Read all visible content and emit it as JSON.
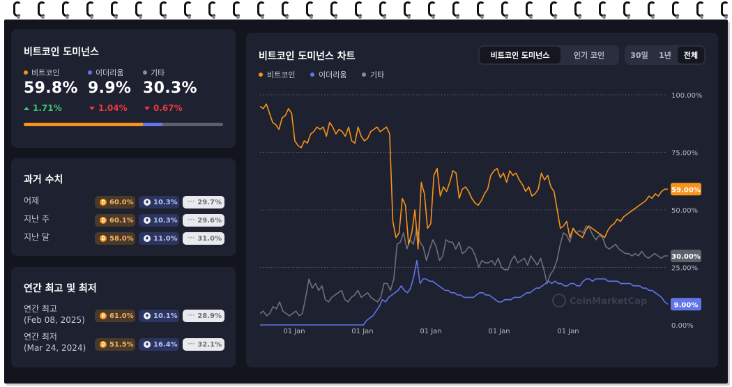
{
  "dominance": {
    "title": "비트코인 도미넌스",
    "items": [
      {
        "label": "비트코인",
        "value": "59.8%",
        "change": "1.71%",
        "dir": "up",
        "color": "#f7931a",
        "share": 59.8
      },
      {
        "label": "이더리움",
        "value": "9.9%",
        "change": "1.04%",
        "dir": "down",
        "color": "#6275eb",
        "share": 9.9
      },
      {
        "label": "기타",
        "value": "30.3%",
        "change": "0.67%",
        "dir": "down",
        "color": "#5d606b",
        "share": 30.3
      }
    ]
  },
  "history": {
    "title": "과거 수치",
    "rows": [
      {
        "label": "어제",
        "btc": "60.0%",
        "eth": "10.3%",
        "others": "29.7%"
      },
      {
        "label": "지난 주",
        "btc": "60.1%",
        "eth": "10.3%",
        "others": "29.6%"
      },
      {
        "label": "지난 달",
        "btc": "58.0%",
        "eth": "11.0%",
        "others": "31.0%"
      }
    ]
  },
  "yearly": {
    "title": "연간 최고 및 최저",
    "rows": [
      {
        "label": "연간 최고",
        "date": "(Feb 08, 2025)",
        "btc": "61.0%",
        "eth": "10.1%",
        "others": "28.9%"
      },
      {
        "label": "연간 최저",
        "date": "(Mar 24, 2024)",
        "btc": "51.5%",
        "eth": "16.4%",
        "others": "32.1%"
      }
    ]
  },
  "chart": {
    "title": "비트코인 도미넌스 차트",
    "tabs": [
      "비트코인 도미넌스",
      "인기 코인"
    ],
    "active_tab": "비트코인 도미넌스",
    "ranges": [
      "30일",
      "1년",
      "전체"
    ],
    "active_range": "전체",
    "legend": [
      "비트코인",
      "이더리움",
      "기타"
    ],
    "watermark": "CoinMarketCap",
    "badges": {
      "btc": "59.00%",
      "others": "30.00%",
      "eth": "9.00%"
    }
  },
  "chart_data": {
    "type": "line",
    "y_ticks": [
      "100.00%",
      "75.00%",
      "50.00%",
      "25.00%",
      "0.00%"
    ],
    "ylim": [
      0,
      100
    ],
    "x_ticks": [
      "01 Jan",
      "01 Jan",
      "01 Jan",
      "01 Jan",
      "01 Jan"
    ],
    "grid": true,
    "legend_position": "top-left",
    "series": [
      {
        "name": "비트코인",
        "color": "#f7931a",
        "values": [
          95,
          94,
          96,
          92,
          88,
          87,
          85,
          90,
          91,
          94,
          92,
          80,
          78,
          77,
          80,
          79,
          83,
          84,
          86,
          85,
          86,
          82,
          88,
          86,
          83,
          85,
          84,
          82,
          86,
          80,
          79,
          86,
          82,
          80,
          81,
          84,
          85,
          86,
          84,
          85,
          86,
          83,
          45,
          38,
          40,
          55,
          52,
          35,
          40,
          50,
          33,
          62,
          57,
          42,
          44,
          65,
          68,
          56,
          60,
          58,
          62,
          67,
          66,
          55,
          59,
          60,
          58,
          55,
          53,
          52,
          54,
          57,
          59,
          65,
          67,
          68,
          64,
          66,
          62,
          67,
          65,
          66,
          63,
          61,
          58,
          60,
          56,
          57,
          59,
          66,
          63,
          65,
          60,
          58,
          50,
          42,
          43,
          45,
          38,
          42,
          40,
          39,
          38,
          41,
          43,
          42,
          41,
          40,
          39,
          38,
          41,
          43,
          44,
          46,
          45,
          47,
          48,
          49,
          50,
          51,
          52,
          53,
          54,
          56,
          55,
          57,
          56,
          58,
          59,
          59
        ]
      },
      {
        "name": "이더리움",
        "color": "#6275eb",
        "values": [
          0,
          0,
          0,
          0,
          0,
          0,
          0,
          0,
          0,
          0,
          0,
          0,
          0,
          0,
          0,
          0,
          0,
          0,
          0,
          0,
          0,
          0,
          0,
          0,
          0,
          0,
          0,
          0,
          0,
          0,
          0,
          0,
          0,
          0,
          2,
          3,
          4,
          6,
          8,
          11,
          10,
          12,
          13,
          14,
          15,
          17,
          15,
          14,
          16,
          21,
          28,
          18,
          20,
          20,
          19,
          19,
          18,
          17,
          16,
          15,
          15,
          14,
          14,
          13,
          13,
          12,
          12,
          12,
          12,
          13,
          14,
          14,
          13,
          13,
          12,
          11,
          10,
          10,
          11,
          11,
          11,
          12,
          12,
          12,
          13,
          14,
          14,
          15,
          16,
          16,
          17,
          18,
          19,
          18,
          19,
          18,
          18,
          17,
          17,
          18,
          18,
          17,
          17,
          19,
          20,
          20,
          19,
          20,
          20,
          20,
          20,
          19,
          19,
          19,
          19,
          18,
          18,
          18,
          18,
          17,
          17,
          17,
          16,
          16,
          15,
          15,
          14,
          13,
          12,
          10,
          9
        ]
      },
      {
        "name": "기타",
        "color": "#6d707b",
        "values": [
          5,
          6,
          4,
          5,
          8,
          7,
          10,
          6,
          5,
          4,
          5,
          6,
          4,
          5,
          12,
          20,
          16,
          18,
          15,
          17,
          11,
          10,
          12,
          13,
          14,
          15,
          11,
          10,
          12,
          13,
          15,
          12,
          13,
          14,
          12,
          11,
          10,
          12,
          18,
          18,
          15,
          20,
          35,
          36,
          40,
          33,
          37,
          35,
          42,
          36,
          34,
          28,
          33,
          37,
          34,
          28,
          30,
          37,
          36,
          36,
          33,
          36,
          31,
          32,
          34,
          33,
          30,
          25,
          28,
          27,
          27,
          28,
          26,
          29,
          25,
          24,
          24,
          28,
          30,
          27,
          28,
          29,
          26,
          30,
          28,
          26,
          29,
          24,
          18,
          22,
          24,
          28,
          35,
          40,
          39,
          36,
          42,
          40,
          41,
          40,
          43,
          42,
          39,
          37,
          39,
          38,
          34,
          33,
          34,
          35,
          33,
          32,
          31,
          31,
          30,
          31,
          30,
          32,
          30,
          29,
          30,
          31,
          30,
          29,
          30,
          30
        ]
      }
    ]
  }
}
